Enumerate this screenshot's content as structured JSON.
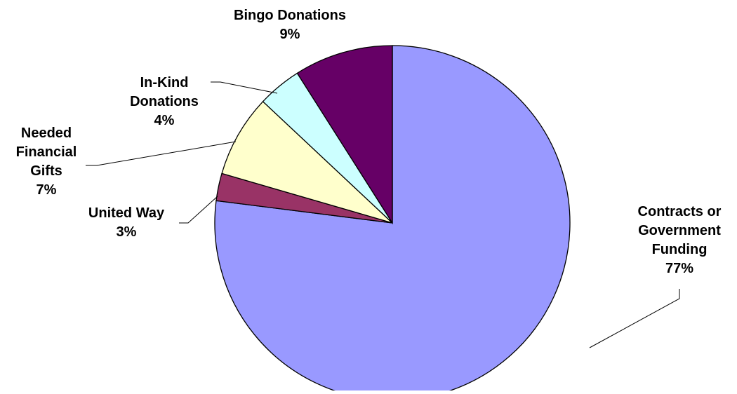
{
  "chart_data": {
    "type": "pie",
    "title": "",
    "start_angle_deg": 0,
    "direction": "clockwise",
    "slices": [
      {
        "label_lines": [
          "Contracts or",
          "Government",
          "Funding"
        ],
        "percent_label": "77%",
        "value": 77,
        "color": "#9999ff"
      },
      {
        "label_lines": [
          "United Way"
        ],
        "percent_label": "3%",
        "value": 2.5,
        "color": "#993366"
      },
      {
        "label_lines": [
          "Needed",
          "Financial",
          "Gifts"
        ],
        "percent_label": "7%",
        "value": 7.5,
        "color": "#ffffcc"
      },
      {
        "label_lines": [
          "In-Kind",
          "Donations"
        ],
        "percent_label": "4%",
        "value": 4,
        "color": "#ccffff"
      },
      {
        "label_lines": [
          "Bingo Donations"
        ],
        "percent_label": "9%",
        "value": 9,
        "color": "#660066"
      }
    ]
  }
}
